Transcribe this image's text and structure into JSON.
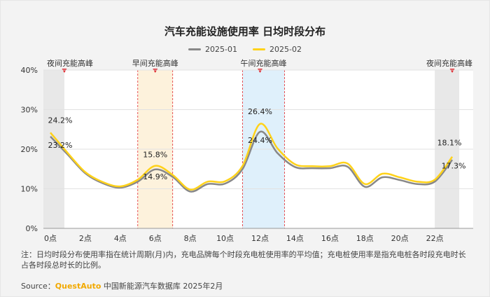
{
  "title": "汽车充能设施使用率 日均时段分布",
  "colors": {
    "s1": "#888888",
    "s2": "#ffd21a",
    "peak_red": "#e0282e",
    "day_fill": "#fdf2dc",
    "noon_fill": "#dff0fb",
    "night_fill": "#e8e8e8"
  },
  "chart_data": {
    "type": "line",
    "title": "汽车充能设施使用率 日均时段分布",
    "xlabel": "",
    "ylabel": "",
    "x": [
      0,
      1,
      2,
      3,
      4,
      5,
      6,
      7,
      8,
      9,
      10,
      11,
      12,
      13,
      14,
      15,
      16,
      17,
      18,
      19,
      20,
      21,
      22,
      23
    ],
    "x_ticks": [
      "0点",
      "2点",
      "4点",
      "6点",
      "8点",
      "10点",
      "12点",
      "14点",
      "16点",
      "18点",
      "20点",
      "22点"
    ],
    "x_tick_values": [
      0,
      2,
      4,
      6,
      8,
      10,
      12,
      14,
      16,
      18,
      20,
      22
    ],
    "y_ticks": [
      "0%",
      "10%",
      "20%",
      "30%",
      "40%"
    ],
    "y_tick_values": [
      0,
      10,
      20,
      30,
      40
    ],
    "ylim": [
      0,
      40
    ],
    "grid": "horizontal",
    "legend_position": "top-center",
    "series": [
      {
        "name": "2025-01",
        "values": [
          23.2,
          18.6,
          13.9,
          11.4,
          10.3,
          11.8,
          14.9,
          13.0,
          9.3,
          11.2,
          11.3,
          15.0,
          24.4,
          19.0,
          15.5,
          15.2,
          15.2,
          15.6,
          10.5,
          12.9,
          12.2,
          11.2,
          11.8,
          17.3
        ]
      },
      {
        "name": "2025-02",
        "values": [
          24.2,
          19.0,
          14.2,
          11.7,
          10.6,
          12.3,
          15.8,
          13.5,
          9.8,
          11.8,
          11.9,
          15.8,
          26.4,
          20.2,
          16.2,
          15.7,
          15.7,
          16.4,
          11.2,
          13.8,
          12.9,
          11.8,
          12.3,
          18.1
        ]
      }
    ],
    "annotations": [
      {
        "x": 0,
        "value": "24.2%",
        "series": "2025-02"
      },
      {
        "x": 0,
        "value": "23.2%",
        "series": "2025-01"
      },
      {
        "x": 6,
        "value": "15.8%",
        "series": "2025-02"
      },
      {
        "x": 6,
        "value": "14.9%",
        "series": "2025-01"
      },
      {
        "x": 12,
        "value": "26.4%",
        "series": "2025-02"
      },
      {
        "x": 12,
        "value": "24.4%",
        "series": "2025-01"
      },
      {
        "x": 23,
        "value": "18.1%",
        "series": "2025-02"
      },
      {
        "x": 23,
        "value": "17.3%",
        "series": "2025-01"
      }
    ],
    "peak_bands": [
      {
        "label": "夜间充能高峰",
        "from": -0.4,
        "to": 0.8,
        "style": "night",
        "marker_x": 0.8
      },
      {
        "label": "早间充能高峰",
        "from": 5,
        "to": 7,
        "style": "day",
        "marker_x": 6
      },
      {
        "label": "午间充能高峰",
        "from": 11,
        "to": 13.4,
        "style": "noon",
        "marker_x": 12
      },
      {
        "label": "夜间充能高峰",
        "from": 22,
        "to": 23.4,
        "style": "night",
        "marker_x": 23
      }
    ]
  },
  "note": "注：日均时段分布使用率指在统计周期(月)内，充电品牌每个时段充电桩使用率的平均值；充电桩使用率是指充电桩各时段充电时长占各时段总时长的比例。",
  "source": {
    "label": "Source：",
    "brand": "QuestAuto",
    "text": "中国新能源汽车数据库 2025年2月"
  }
}
